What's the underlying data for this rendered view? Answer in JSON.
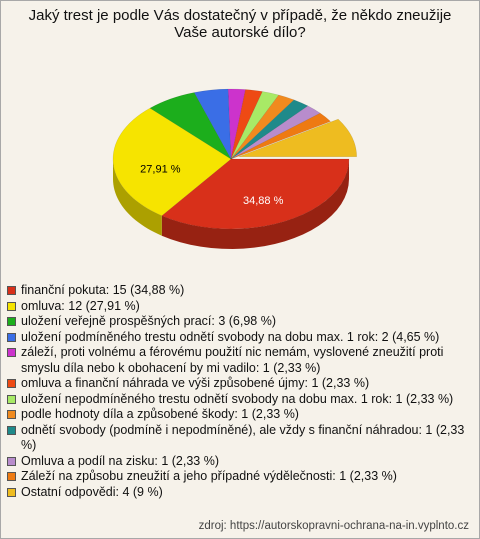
{
  "chart_data": {
    "type": "pie",
    "title": "Jaký trest je podle Vás dostatečný v případě, že někdo zneužije Vaše autorské dílo?",
    "categories": [
      "finanční pokuta: 15 (34,88 %)",
      "omluva: 12 (27,91 %)",
      "uložení veřejně prospěšných prací: 3 (6,98 %)",
      "uložení podmíněného trestu odnětí svobody na dobu max. 1 rok: 2 (4,65 %)",
      "záleží, proti volnému a férovému použití nic nemám, vyslovené zneužití proti smyslu díla nebo k obohacení by mi vadilo: 1 (2,33 %)",
      "omluva a finanční náhrada ve výši způsobené újmy: 1 (2,33 %)",
      "uložení nepodmíněného trestu odnětí svobody na dobu max. 1 rok: 1 (2,33 %)",
      "podle hodnoty díla a způsobené škody: 1 (2,33 %)",
      "odnětí svobody (podmíně i nepodmíněné), ale vždy s finanční náhradou: 1 (2,33 %)",
      "Omluva a podíl na zisku: 1 (2,33 %)",
      "Záleží na způsobu zneužití a jeho případné výdělečnosti: 1 (2,33 %)",
      "Ostatní odpovědi: 4 (9 %)"
    ],
    "values": [
      34.88,
      27.91,
      6.98,
      4.65,
      2.33,
      2.33,
      2.33,
      2.33,
      2.33,
      2.33,
      2.33,
      9
    ],
    "value_labels": [
      "34,88 %",
      "27,91 %",
      null,
      null,
      null,
      null,
      null,
      null,
      null,
      null,
      null,
      null
    ],
    "colors": [
      "#d8301a",
      "#f6e400",
      "#1cae1c",
      "#3a6ee6",
      "#cc33cc",
      "#ee4a14",
      "#a8ea66",
      "#f08a1e",
      "#1f8a8a",
      "#b88ccc",
      "#ee7a12",
      "#eebc20"
    ],
    "source": "zdroj: https://autorskopravni-ochrana-na-in.vyplnto.cz"
  }
}
